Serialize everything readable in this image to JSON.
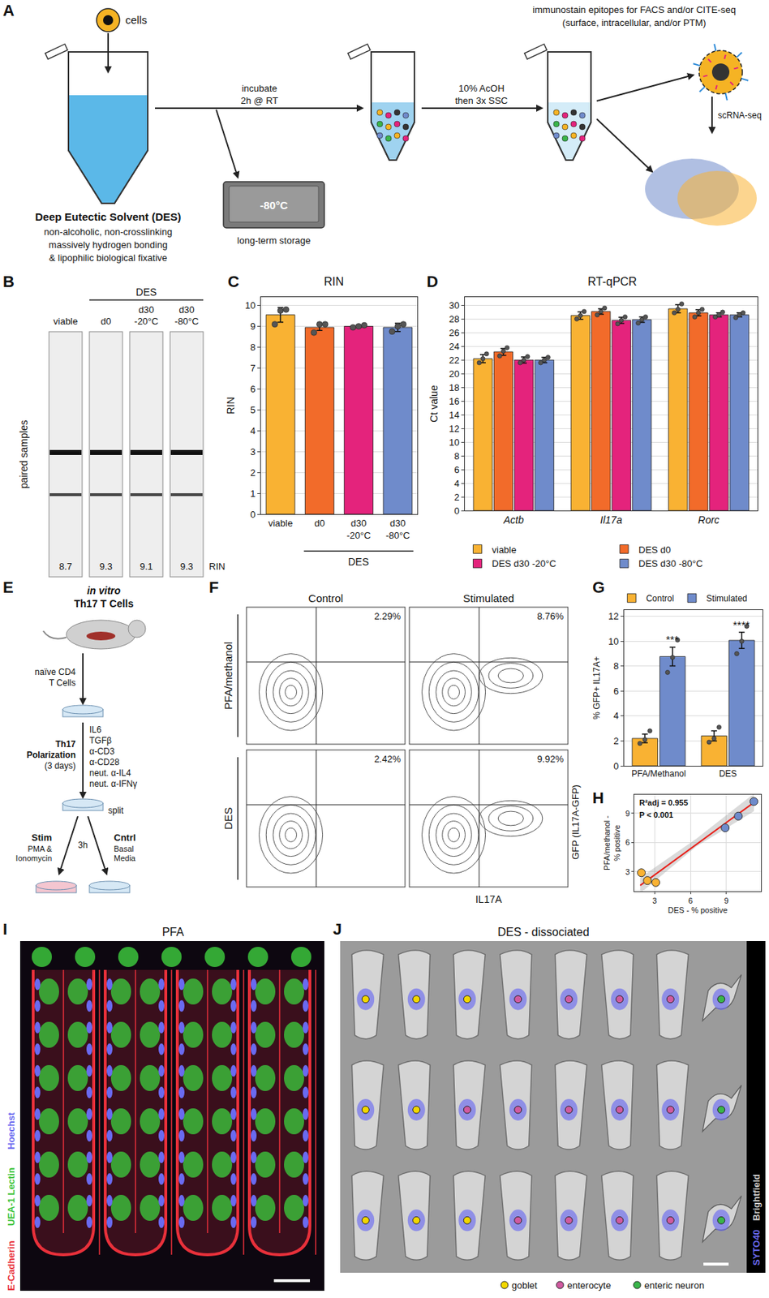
{
  "chart_data": [
    {
      "panel": "C",
      "type": "bar",
      "title": "RIN",
      "y_label": "RIN",
      "categories": [
        "viable",
        "d0",
        "d30 -20°C",
        "d30 -80°C"
      ],
      "group_label": "DES",
      "values": [
        9.55,
        8.95,
        9.0,
        8.95
      ],
      "errors": [
        0.35,
        0.15,
        0.05,
        0.2
      ],
      "points": [
        [
          9.1,
          9.75,
          9.8
        ],
        [
          8.7,
          9.1,
          9.1
        ],
        [
          8.95,
          9.0,
          9.05
        ],
        [
          8.75,
          9.0,
          9.1
        ]
      ],
      "colors": [
        "#F9B233",
        "#F26B2A",
        "#E4237C",
        "#6F8BCB"
      ],
      "ylim": [
        0,
        10.4
      ],
      "yticks": [
        0,
        1,
        2,
        3,
        4,
        5,
        6,
        7,
        8,
        9,
        10
      ],
      "grid": true
    },
    {
      "panel": "D",
      "type": "bar",
      "title": "RT-qPCR",
      "y_label": "Ct value",
      "categories": [
        "Actb",
        "Il17a",
        "Rorc"
      ],
      "legend": "bottom",
      "series": [
        {
          "name": "viable",
          "color": "#F9B233",
          "values": [
            22.2,
            28.5,
            29.5
          ],
          "errors": [
            0.6,
            0.55,
            0.6
          ],
          "points": [
            [
              21.6,
              22.2,
              22.9
            ],
            [
              28.0,
              28.5,
              29.1
            ],
            [
              28.9,
              29.4,
              30.2
            ]
          ]
        },
        {
          "name": "DES d0",
          "color": "#F26B2A",
          "values": [
            23.2,
            29.1,
            28.9
          ],
          "errors": [
            0.5,
            0.4,
            0.45
          ],
          "points": [
            [
              22.6,
              23.3,
              23.8
            ],
            [
              28.6,
              29.1,
              29.6
            ],
            [
              28.3,
              28.9,
              29.4
            ]
          ]
        },
        {
          "name": "DES d30 -20°C",
          "color": "#E4237C",
          "values": [
            22.0,
            27.8,
            28.6
          ],
          "errors": [
            0.45,
            0.45,
            0.3
          ],
          "points": [
            [
              21.6,
              22.0,
              22.5
            ],
            [
              27.3,
              27.8,
              28.3
            ],
            [
              28.3,
              28.6,
              29.0
            ]
          ]
        },
        {
          "name": "DES d30 -80°C",
          "color": "#6F8BCB",
          "values": [
            22.0,
            27.9,
            28.6
          ],
          "errors": [
            0.4,
            0.4,
            0.3
          ],
          "points": [
            [
              21.6,
              22.0,
              22.4
            ],
            [
              27.4,
              27.9,
              28.3
            ],
            [
              28.2,
              28.6,
              28.9
            ]
          ]
        }
      ],
      "ylim": [
        0,
        31.2
      ],
      "yticks": [
        0,
        2,
        4,
        6,
        8,
        10,
        12,
        14,
        16,
        18,
        20,
        22,
        24,
        26,
        28,
        30
      ],
      "grid": true
    },
    {
      "panel": "G",
      "type": "bar",
      "y_label": "% GFP+ IL17A+",
      "categories": [
        "PFA/Methanol",
        "DES"
      ],
      "legend": "top",
      "series": [
        {
          "name": "Control",
          "color": "#F9B233",
          "values": [
            2.2,
            2.4
          ],
          "errors": [
            0.35,
            0.4
          ],
          "points": [
            [
              1.8,
              2.1,
              2.8
            ],
            [
              1.9,
              2.2,
              3.1
            ]
          ]
        },
        {
          "name": "Stimulated",
          "color": "#6F8BCB",
          "values": [
            8.77,
            10.07
          ],
          "errors": [
            0.75,
            0.65
          ],
          "points": [
            [
              7.5,
              8.7,
              10.1
            ],
            [
              9.0,
              10.0,
              11.2
            ]
          ],
          "significance": [
            "***",
            "****"
          ]
        }
      ],
      "ylim": [
        0,
        12.5
      ],
      "yticks": [
        0,
        2,
        4,
        6,
        8,
        10,
        12
      ],
      "grid": true
    },
    {
      "panel": "H",
      "type": "scatter",
      "x_label": "DES - % positive",
      "y_label": "PFA/methanol - % positive",
      "series": [
        {
          "name": "Control",
          "color": "#F9B233",
          "x": [
            1.9,
            2.4,
            3.1
          ],
          "y": [
            2.9,
            2.1,
            1.9
          ]
        },
        {
          "name": "Stimulated",
          "color": "#6F8BCB",
          "x": [
            8.9,
            10.0,
            11.3
          ],
          "y": [
            7.5,
            8.7,
            10.2
          ]
        }
      ],
      "fit": {
        "color": "#E8201A",
        "x": [
          1.8,
          11.3
        ],
        "y": [
          1.6,
          10.1
        ]
      },
      "band": {
        "x": [
          1.8,
          6.5,
          11.3
        ],
        "lower": [
          0.8,
          5.6,
          9.2
        ],
        "upper": [
          2.4,
          6.4,
          11.0
        ]
      },
      "annotations": [
        "R²adj = 0.955",
        "P < 0.001"
      ],
      "xlim": [
        1.3,
        11.9
      ],
      "xticks": [
        3,
        6,
        9
      ],
      "ylim": [
        1.0,
        10.9
      ],
      "yticks": [
        3,
        6,
        9
      ],
      "grid": true
    }
  ],
  "diagram_A": {
    "panel": "A",
    "cells_label": "cells",
    "des_title": "Deep Eutectic Solvent (DES)",
    "des_description": [
      "non-alcoholic, non-crosslinking",
      "massively hydrogen bonding",
      "& lipophilic biological fixative"
    ],
    "step1": [
      "incubate",
      "2h @ RT"
    ],
    "freezer": "-80°C",
    "storage": "long-term storage",
    "step2": [
      "10% AcOH",
      "then 3x SSC"
    ],
    "stain": [
      "immunostain epitopes for FACS and/or CITE-seq",
      "(surface, intracellular, and/or PTM)"
    ],
    "sequencing": "scRNA-seq"
  },
  "gel_B": {
    "panel": "B",
    "group_label": "DES",
    "lanes": [
      "viable",
      "d0",
      "d30 -20°C",
      "d30 -80°C"
    ],
    "rin": [
      8.7,
      9.3,
      9.1,
      9.3
    ],
    "rin_label": "RIN",
    "side_label": "paired samples"
  },
  "diagram_E": {
    "panel": "E",
    "title": [
      "in vitro",
      "Th17 T Cells"
    ],
    "source": [
      "naïve CD4",
      "T Cells"
    ],
    "step": [
      "Th17",
      "Polarization",
      "(3 days)"
    ],
    "reagents": [
      "IL6",
      "TGFβ",
      "α-CD3",
      "α-CD28",
      "neut. α-IL4",
      "neut. α-IFNγ"
    ],
    "split": "split",
    "stim": "Stim",
    "stim_detail": [
      "PMA &",
      "Ionomycin"
    ],
    "time": "3h",
    "control": "Cntrl",
    "control_detail": [
      "Basal",
      "Media"
    ]
  },
  "flow_F": {
    "panel": "F",
    "columns": [
      "Control",
      "Stimulated"
    ],
    "rows": [
      "PFA/methanol",
      "DES"
    ],
    "percentages": [
      [
        "2.29%",
        "8.76%"
      ],
      [
        "2.42%",
        "9.92%"
      ]
    ],
    "x_label": "IL17A",
    "y_label": "GFP (IL17A-GFP)"
  },
  "image_I": {
    "panel": "I",
    "title": "PFA",
    "stains": [
      {
        "name": "E-Cadherin",
        "color": "#E8303A"
      },
      {
        "name": "UEA-1 Lectin",
        "color": "#3CC43C"
      },
      {
        "name": "Hoechst",
        "color": "#6A6AF0"
      }
    ]
  },
  "image_J": {
    "panel": "J",
    "title": "DES - dissociated",
    "channels": [
      {
        "name": "Brightfield",
        "color": "#CCCCCC"
      },
      {
        "name": "SYTO40",
        "color": "#6A6AF0"
      }
    ],
    "cell_types": [
      {
        "name": "goblet",
        "color": "#F2D600"
      },
      {
        "name": "enterocyte",
        "color": "#D05AA0"
      },
      {
        "name": "enteric neuron",
        "color": "#39B54A"
      }
    ],
    "cells": [
      [
        "goblet",
        "goblet",
        "goblet",
        "enterocyte",
        "enterocyte",
        "enterocyte",
        "enterocyte",
        "enteric neuron"
      ],
      [
        "goblet",
        "goblet",
        "enterocyte",
        "enterocyte",
        "enterocyte",
        "enterocyte",
        "enterocyte",
        "enteric neuron"
      ],
      [
        "goblet",
        "goblet",
        "goblet",
        "enterocyte",
        "enterocyte",
        "enterocyte",
        "enterocyte",
        "enteric neuron"
      ]
    ]
  }
}
